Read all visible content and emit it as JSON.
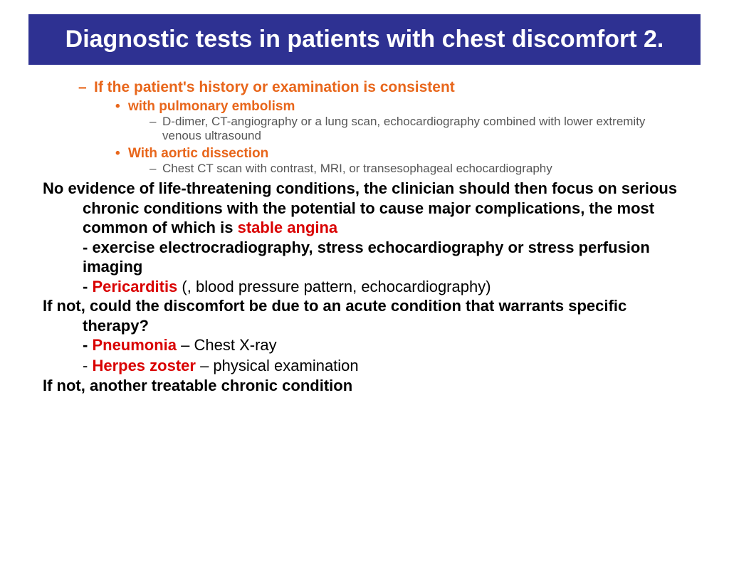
{
  "colors": {
    "title_bg": "#2e3192",
    "title_text": "#ffffff",
    "accent_orange": "#e8661b",
    "accent_red": "#d90000",
    "body_text": "#000000",
    "sub_text": "#575757"
  },
  "fonts": {
    "title_size": "34px",
    "lvl1_size": "21px",
    "lvl2_size": "19px",
    "lvl3_size": "17px",
    "para_size": "22px"
  },
  "title": "Diagnostic tests in patients with chest discomfort 2.",
  "lvl1_header": "If the patient's history or examination is consistent",
  "pe_label": "with pulmonary embolism",
  "pe_tests": "D-dimer, CT-angiography or a lung scan, echocardiography combined with lower extremity venous ultrasound",
  "ad_label": "With aortic dissection",
  "ad_tests": "Chest CT scan with contrast, MRI, or transesophageal echocardiography",
  "para1_a": "No evidence of life-threatening conditions, the clinician should then focus on serious chronic conditions with the potential to cause major complications, the most common of which is ",
  "para1_red": "stable angina",
  "para1_sub1": "- exercise electrocradiography, stress echocardiography or stress perfusion imaging",
  "para1_sub2_dash": "- ",
  "para1_sub2_red": "Pericarditis",
  "para1_sub2_rest": " (, blood pressure pattern, echocardiography)",
  "para2": "If not, could the discomfort be due to an acute condition that warrants specific therapy?",
  "para2_sub1_dash": "- ",
  "para2_sub1_red": "Pneumonia",
  "para2_sub1_rest": " – Chest X-ray",
  "para2_sub2_dash": "- ",
  "para2_sub2_red": "Herpes zoster",
  "para2_sub2_rest": " – physical examination",
  "para3": "If not, another treatable chronic condition"
}
